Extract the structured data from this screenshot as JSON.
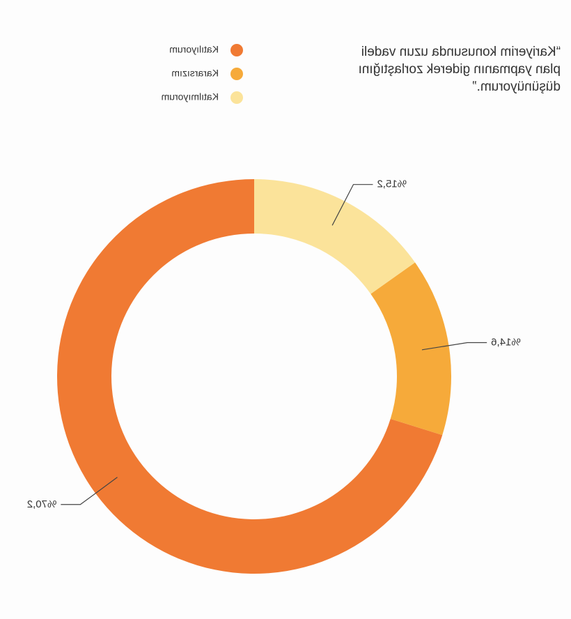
{
  "chart_data": {
    "type": "donut",
    "title": [
      "“Kariyerim konusunda uzun vadeli",
      "plan yapmanın giderek zorlaştığını",
      "düşünüyorum.”"
    ],
    "categories": [
      "Katılıyorum",
      "Kararsızım",
      "Katılmıyorum"
    ],
    "values": [
      70.2,
      14.6,
      15.2
    ],
    "value_labels": [
      "%70,2",
      "%14,6",
      "%15,2"
    ],
    "colors": [
      "#f07a33",
      "#f6aa3a",
      "#fbe39a"
    ],
    "mirrored": true
  }
}
